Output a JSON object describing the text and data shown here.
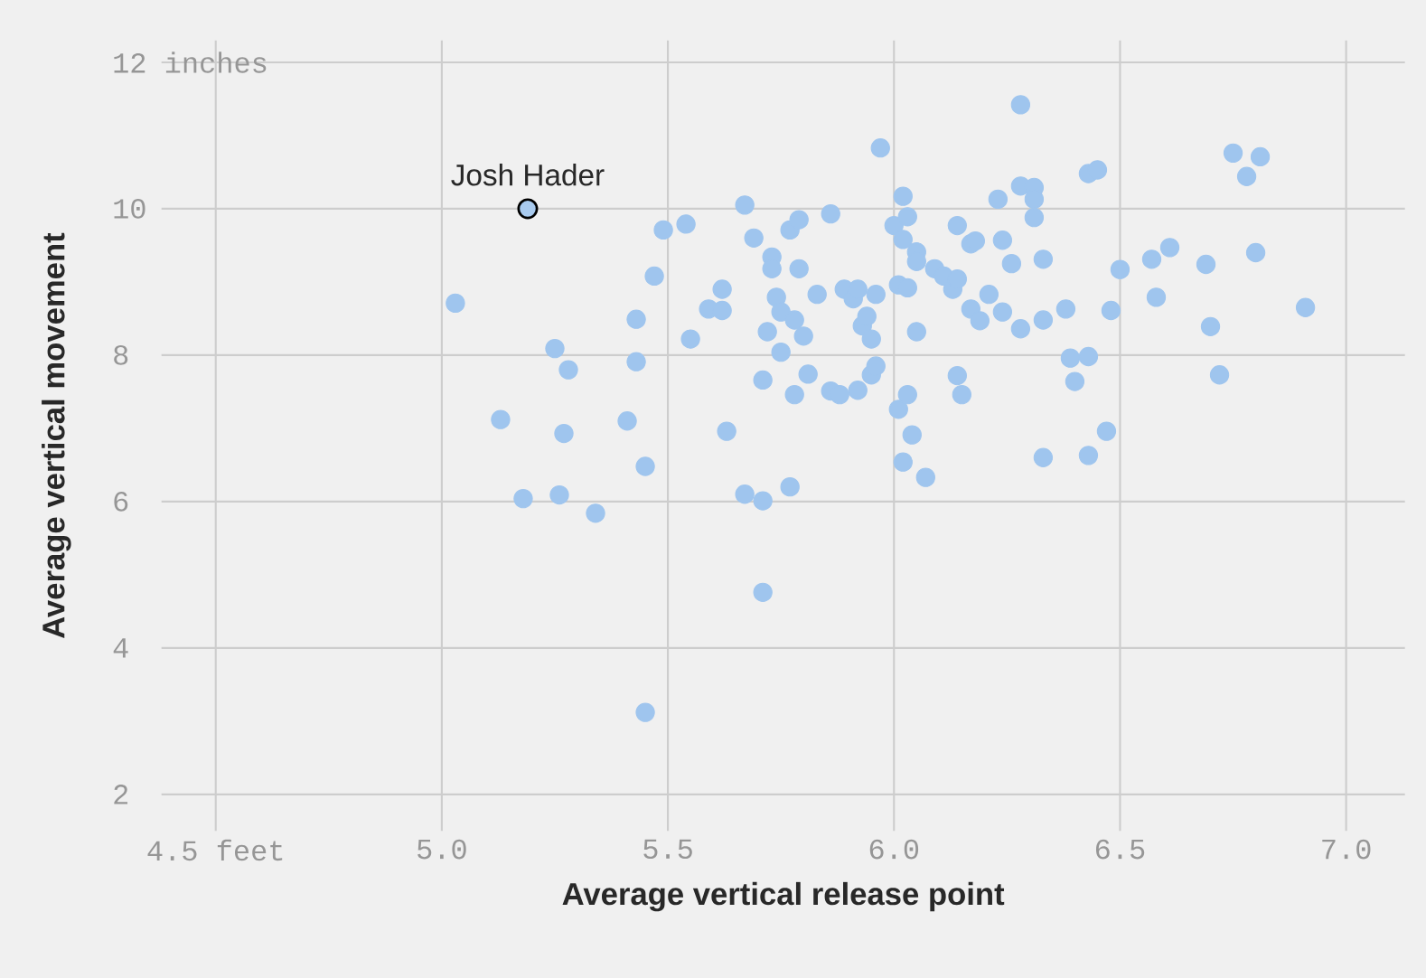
{
  "chart_data": {
    "type": "scatter",
    "xlabel": "Average vertical release point",
    "ylabel": "Average vertical movement",
    "xlim": [
      4.38,
      7.13
    ],
    "ylim": [
      1.5,
      12.3
    ],
    "xticks": [
      {
        "value": 4.5,
        "label": "4.5 feet"
      },
      {
        "value": 5.0,
        "label": "5.0"
      },
      {
        "value": 5.5,
        "label": "5.5"
      },
      {
        "value": 6.0,
        "label": "6.0"
      },
      {
        "value": 6.5,
        "label": "6.5"
      },
      {
        "value": 7.0,
        "label": "7.0"
      }
    ],
    "yticks": [
      2,
      4,
      6,
      8,
      10,
      {
        "value": 12,
        "label": "12 inches"
      }
    ],
    "grid": true,
    "series": [
      {
        "color": "#9fc5ee",
        "x": [
          5.03,
          5.13,
          5.18,
          5.25,
          5.28,
          5.26,
          5.27,
          5.34,
          5.41,
          5.43,
          5.43,
          5.45,
          5.45,
          5.47,
          5.49,
          5.54,
          5.55,
          5.59,
          5.62,
          5.62,
          5.63,
          5.67,
          5.67,
          5.69,
          5.71,
          5.71,
          5.71,
          5.72,
          5.73,
          5.73,
          5.74,
          5.75,
          5.75,
          5.77,
          5.79,
          5.79,
          5.78,
          5.8,
          5.77,
          5.78,
          5.81,
          5.83,
          5.86,
          5.86,
          5.88,
          5.89,
          5.91,
          5.92,
          5.92,
          5.93,
          5.94,
          5.95,
          5.96,
          5.95,
          5.96,
          5.97,
          6.0,
          6.01,
          6.02,
          6.02,
          6.03,
          6.03,
          6.01,
          6.03,
          6.04,
          6.02,
          6.07,
          6.05,
          6.05,
          6.05,
          6.09,
          6.11,
          6.13,
          6.14,
          6.14,
          6.17,
          6.18,
          6.17,
          6.19,
          6.21,
          6.24,
          6.14,
          6.15,
          6.23,
          6.24,
          6.26,
          6.28,
          6.28,
          6.31,
          6.31,
          6.31,
          6.33,
          6.28,
          6.33,
          6.33,
          6.38,
          6.39,
          6.4,
          6.43,
          6.43,
          6.43,
          6.45,
          6.47,
          6.48,
          6.5,
          6.57,
          6.58,
          6.61,
          6.69,
          6.7,
          6.72,
          6.75,
          6.78,
          6.81,
          6.8,
          6.91
        ],
        "values": [
          8.71,
          7.12,
          6.04,
          8.09,
          7.8,
          6.09,
          6.93,
          5.84,
          7.1,
          8.49,
          7.91,
          6.48,
          3.12,
          9.08,
          9.71,
          9.79,
          8.22,
          8.63,
          8.9,
          8.61,
          6.96,
          10.05,
          6.1,
          9.6,
          6.01,
          4.76,
          7.66,
          8.32,
          9.34,
          9.18,
          8.79,
          8.59,
          8.04,
          9.71,
          9.85,
          9.18,
          8.48,
          8.26,
          6.2,
          7.46,
          7.74,
          8.83,
          9.93,
          7.51,
          7.46,
          8.9,
          8.77,
          8.9,
          7.52,
          8.4,
          8.53,
          8.22,
          8.83,
          7.73,
          7.85,
          10.83,
          9.77,
          8.96,
          10.17,
          9.58,
          9.89,
          8.92,
          7.26,
          7.46,
          6.91,
          6.54,
          6.33,
          9.41,
          9.28,
          8.32,
          9.18,
          9.08,
          8.9,
          9.04,
          9.77,
          9.52,
          9.56,
          8.63,
          8.47,
          8.83,
          8.59,
          7.72,
          7.46,
          10.13,
          9.57,
          9.25,
          11.42,
          10.31,
          10.29,
          10.13,
          9.88,
          9.31,
          8.36,
          8.48,
          6.6,
          8.63,
          7.96,
          7.64,
          7.98,
          6.63,
          10.48,
          10.53,
          6.96,
          8.61,
          9.17,
          9.31,
          8.79,
          9.47,
          9.24,
          8.39,
          7.73,
          10.76,
          10.44,
          10.71,
          9.4,
          8.65
        ]
      },
      {
        "name": "Josh Hader",
        "color": "#a9cbef",
        "x": [
          5.19
        ],
        "values": [
          10.0
        ]
      }
    ]
  }
}
